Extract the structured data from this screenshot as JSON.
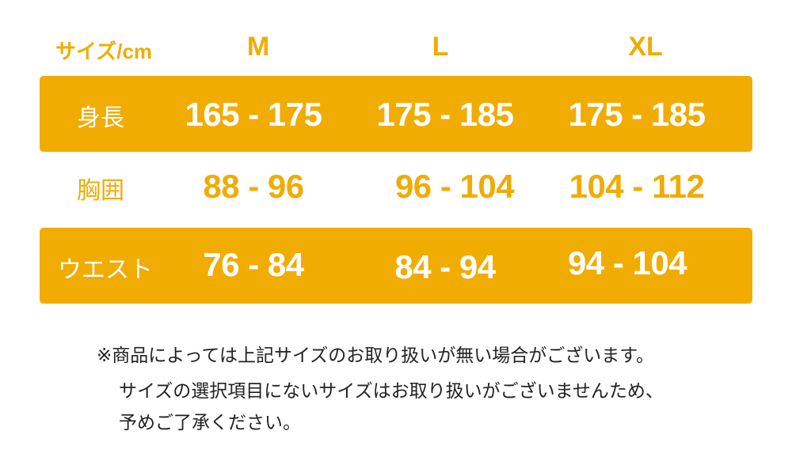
{
  "accent_color": "#F0AC00",
  "header": {
    "unit_label": "サイズ/cm",
    "sizes": [
      "M",
      "L",
      "XL"
    ]
  },
  "rows": [
    {
      "label": "身長",
      "values": [
        "165 - 175",
        "175 - 185",
        "175 - 185"
      ]
    },
    {
      "label": "胸囲",
      "values": [
        "88 - 96",
        "96 - 104",
        "104 - 112"
      ]
    },
    {
      "label": "ウエスト",
      "values": [
        "76 - 84",
        "84 - 94",
        "94 - 104"
      ]
    }
  ],
  "notes": [
    "※商品によっては上記サイズのお取り扱いが無い場合がございます。",
    "サイズの選択項目にないサイズはお取り扱いがございませんため、",
    "予めご了承ください。"
  ]
}
